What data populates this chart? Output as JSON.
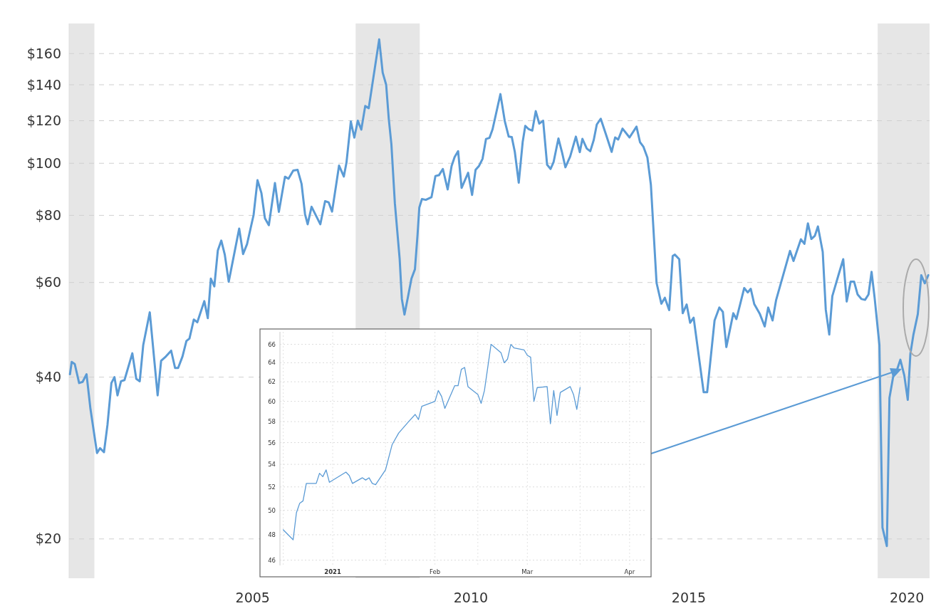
{
  "chart_data": [
    {
      "type": "line",
      "log": "y",
      "grid": "y",
      "x": [
        2000.81,
        2000.85,
        2000.92,
        2001.02,
        2001.1,
        2001.19,
        2001.28,
        2001.43,
        2001.5,
        2001.59,
        2001.67,
        2001.76,
        2001.83,
        2001.9,
        2001.98,
        2002.06,
        2002.24,
        2002.33,
        2002.41,
        2002.49,
        2002.64,
        2002.82,
        2002.9,
        2003.01,
        2003.13,
        2003.22,
        2003.29,
        2003.39,
        2003.48,
        2003.55,
        2003.65,
        2003.73,
        2003.89,
        2003.97,
        2004.04,
        2004.12,
        2004.2,
        2004.28,
        2004.36,
        2004.45,
        2004.69,
        2004.78,
        2004.87,
        2005.02,
        2005.11,
        2005.2,
        2005.28,
        2005.37,
        2005.51,
        2005.6,
        2005.74,
        2005.82,
        2005.93,
        2006.03,
        2006.12,
        2006.2,
        2006.26,
        2006.35,
        2006.55,
        2006.66,
        2006.74,
        2006.82,
        2006.98,
        2007.09,
        2007.15,
        2007.25,
        2007.33,
        2007.41,
        2007.49,
        2007.58,
        2007.66,
        2007.9,
        2007.98,
        2008.06,
        2008.12,
        2008.18,
        2008.26,
        2008.37,
        2008.42,
        2008.48,
        2008.56,
        2008.64,
        2008.72,
        2008.78,
        2008.82,
        2008.88,
        2008.97,
        2009.1,
        2009.19,
        2009.27,
        2009.36,
        2009.47,
        2009.56,
        2009.63,
        2009.71,
        2009.79,
        2009.94,
        2010.03,
        2010.11,
        2010.19,
        2010.27,
        2010.35,
        2010.43,
        2010.5,
        2010.68,
        2010.78,
        2010.87,
        2010.94,
        2011.01,
        2011.1,
        2011.19,
        2011.25,
        2011.33,
        2011.41,
        2011.49,
        2011.57,
        2011.66,
        2011.75,
        2011.83,
        2011.9,
        2012.01,
        2012.09,
        2012.17,
        2012.28,
        2012.41,
        2012.5,
        2012.56,
        2012.66,
        2012.74,
        2012.82,
        2012.89,
        2012.98,
        2013.12,
        2013.23,
        2013.31,
        2013.38,
        2013.48,
        2013.64,
        2013.8,
        2013.88,
        2013.96,
        2014.05,
        2014.13,
        2014.26,
        2014.37,
        2014.45,
        2014.55,
        2014.63,
        2014.68,
        2014.78,
        2014.86,
        2014.95,
        2015.03,
        2015.11,
        2015.34,
        2015.42,
        2015.59,
        2015.7,
        2015.78,
        2015.86,
        2016.02,
        2016.09,
        2016.17,
        2016.27,
        2016.35,
        2016.42,
        2016.5,
        2016.63,
        2016.74,
        2016.82,
        2016.92,
        2017.0,
        2017.32,
        2017.4,
        2017.57,
        2017.65,
        2017.73,
        2017.81,
        2017.89,
        2017.96,
        2018.07,
        2018.14,
        2018.22,
        2018.29,
        2018.43,
        2018.54,
        2018.62,
        2018.71,
        2018.79,
        2018.87,
        2018.96,
        2019.04,
        2019.12,
        2019.19,
        2019.26,
        2019.37,
        2019.44,
        2019.54,
        2019.6,
        2019.69,
        2019.77,
        2019.85,
        2019.94,
        2020.02,
        2020.08,
        2020.15,
        2020.25,
        2020.33,
        2020.41,
        2020.49
      ],
      "series": [
        {
          "color": "#5b9bd5",
          "values": [
            40.5,
            42.7,
            42.3,
            39.0,
            39.2,
            40.5,
            34.9,
            28.9,
            29.5,
            29.0,
            32.6,
            39.0,
            40.0,
            37.0,
            39.3,
            39.5,
            44.3,
            39.7,
            39.3,
            45.9,
            52.8,
            37.0,
            42.9,
            43.7,
            44.8,
            41.6,
            41.6,
            43.7,
            46.7,
            47.2,
            51.2,
            50.6,
            55.4,
            51.5,
            61.0,
            59.0,
            68.8,
            71.8,
            67.6,
            60.2,
            75.6,
            67.8,
            70.7,
            80.1,
            93.0,
            88.0,
            79.0,
            76.7,
            91.9,
            81.2,
            94.4,
            93.6,
            96.9,
            97.2,
            91.6,
            80.4,
            77.0,
            83.0,
            77.0,
            85.0,
            84.6,
            81.3,
            99.0,
            94.5,
            100.3,
            119.6,
            111.6,
            120.0,
            115.5,
            127.8,
            126.6,
            170.0,
            147.5,
            140.0,
            121.0,
            108.5,
            84.2,
            66.3,
            55.9,
            52.3,
            56.4,
            61.0,
            63.5,
            73.7,
            82.7,
            85.8,
            85.5,
            86.5,
            94.7,
            95.0,
            97.6,
            89.4,
            98.8,
            102.7,
            105.3,
            90.0,
            96.0,
            87.3,
            97.2,
            98.9,
            101.9,
            111.0,
            111.5,
            115.7,
            134.5,
            119.8,
            112.1,
            111.9,
            105.0,
            92.0,
            109.5,
            117.4,
            115.7,
            115.0,
            125.0,
            118.5,
            120.0,
            99.4,
            97.6,
            100.6,
            111.2,
            105.0,
            98.3,
            103.0,
            112.1,
            104.9,
            111.0,
            106.5,
            105.3,
            110.5,
            118.1,
            121.0,
            111.9,
            105.0,
            111.7,
            110.7,
            116.0,
            111.7,
            117.0,
            109.5,
            107.3,
            102.5,
            91.2,
            59.9,
            54.8,
            56.2,
            53.3,
            67.2,
            67.6,
            66.3,
            52.6,
            54.6,
            50.5,
            51.6,
            37.5,
            37.5,
            51.0,
            53.9,
            52.9,
            45.5,
            52.6,
            51.3,
            54.4,
            58.6,
            57.5,
            58.4,
            54.7,
            52.4,
            49.7,
            53.9,
            51.0,
            55.6,
            68.7,
            65.8,
            72.2,
            70.8,
            77.3,
            72.3,
            73.3,
            76.3,
            68.4,
            53.4,
            48.0,
            56.6,
            61.9,
            66.3,
            55.3,
            60.2,
            60.2,
            57.0,
            55.9,
            55.7,
            57.0,
            62.8,
            56.2,
            45.9,
            21.0,
            19.4,
            36.6,
            40.3,
            41.2,
            43.1,
            40.3,
            36.3,
            44.2,
            48.0,
            52.4,
            61.9,
            59.8,
            61.9
          ]
        }
      ],
      "xlim": [
        2000.79,
        2020.52
      ],
      "xticks": [
        2005,
        2010,
        2015,
        2020
      ],
      "ylim": [
        16.9,
        182
      ],
      "yticks": [
        {
          "value": 20,
          "label": "$20"
        },
        {
          "value": 40,
          "label": "$40"
        },
        {
          "value": 60,
          "label": "$60"
        },
        {
          "value": 80,
          "label": "$80"
        },
        {
          "value": 100,
          "label": "$100"
        },
        {
          "value": 120,
          "label": "$120"
        },
        {
          "value": 140,
          "label": "$140"
        },
        {
          "value": 160,
          "label": "$160"
        }
      ],
      "bands": [
        {
          "axis": "x",
          "from": 2000.79,
          "to": 2001.37,
          "color": "#e6e6e6"
        },
        {
          "axis": "x",
          "from": 2007.36,
          "to": 2008.83,
          "color": "#e6e6e6"
        },
        {
          "axis": "x",
          "from": 2019.33,
          "to": 2020.52,
          "color": "#e6e6e6"
        }
      ]
    },
    {
      "type": "line",
      "log": "y",
      "grid": true,
      "x": [
        "2020-12-17",
        "2020-12-20",
        "2020-12-21",
        "2020-12-22",
        "2020-12-23",
        "2020-12-24",
        "2020-12-27",
        "2020-12-28",
        "2020-12-29",
        "2020-12-30",
        "2020-12-31",
        "2021-01-05",
        "2021-01-06",
        "2021-01-07",
        "2021-01-10",
        "2021-01-11",
        "2021-01-12",
        "2021-01-13",
        "2021-01-14",
        "2021-01-17",
        "2021-01-19",
        "2021-01-21",
        "2021-01-24",
        "2021-01-26",
        "2021-01-27",
        "2021-01-28",
        "2021-02-01",
        "2021-02-02",
        "2021-02-03",
        "2021-02-04",
        "2021-02-07",
        "2021-02-08",
        "2021-02-09",
        "2021-02-10",
        "2021-02-11",
        "2021-02-14",
        "2021-02-15",
        "2021-02-16",
        "2021-02-18",
        "2021-02-21",
        "2021-02-22",
        "2021-02-23",
        "2021-02-24",
        "2021-02-25",
        "2021-02-28",
        "2021-03-01",
        "2021-03-02",
        "2021-03-03",
        "2021-03-04",
        "2021-03-07",
        "2021-03-08",
        "2021-03-09",
        "2021-03-10",
        "2021-03-11",
        "2021-03-14",
        "2021-03-15",
        "2021-03-16",
        "2021-03-17"
      ],
      "series": [
        {
          "color": "#5b9bd5",
          "values": [
            48.4,
            47.6,
            49.8,
            50.6,
            50.8,
            52.3,
            52.3,
            53.2,
            52.9,
            53.5,
            52.4,
            53.3,
            53.0,
            52.3,
            52.8,
            52.6,
            52.8,
            52.3,
            52.2,
            53.5,
            55.8,
            56.9,
            58.0,
            58.7,
            58.2,
            59.5,
            60.0,
            61.1,
            60.5,
            59.3,
            61.6,
            61.6,
            63.3,
            63.5,
            61.5,
            60.7,
            59.8,
            61.1,
            66.0,
            65.1,
            64.0,
            64.4,
            66.0,
            65.6,
            65.4,
            64.8,
            64.6,
            60.0,
            61.4,
            61.5,
            57.8,
            61.1,
            58.6,
            60.9,
            61.5,
            60.7,
            59.2,
            61.4
          ]
        }
      ],
      "xlim": [
        "2020-12-16",
        "2021-04-06"
      ],
      "xticks": [
        {
          "value": "2020-12-17",
          "label": null
        },
        {
          "value": "2021-01-01",
          "label": "2021"
        },
        {
          "value": "2021-01-17",
          "label": null
        },
        {
          "value": "2021-02-01",
          "label": "Feb"
        },
        {
          "value": "2021-02-14",
          "label": null
        },
        {
          "value": "2021-03-01",
          "label": "Mar"
        },
        {
          "value": "2021-03-17",
          "label": null
        },
        {
          "value": "2021-04-01",
          "label": "Apr"
        }
      ],
      "ylim": [
        45.6,
        67.4
      ],
      "yticks": [
        46,
        48,
        50,
        52,
        54,
        56,
        58,
        60,
        62,
        64,
        66
      ]
    }
  ]
}
